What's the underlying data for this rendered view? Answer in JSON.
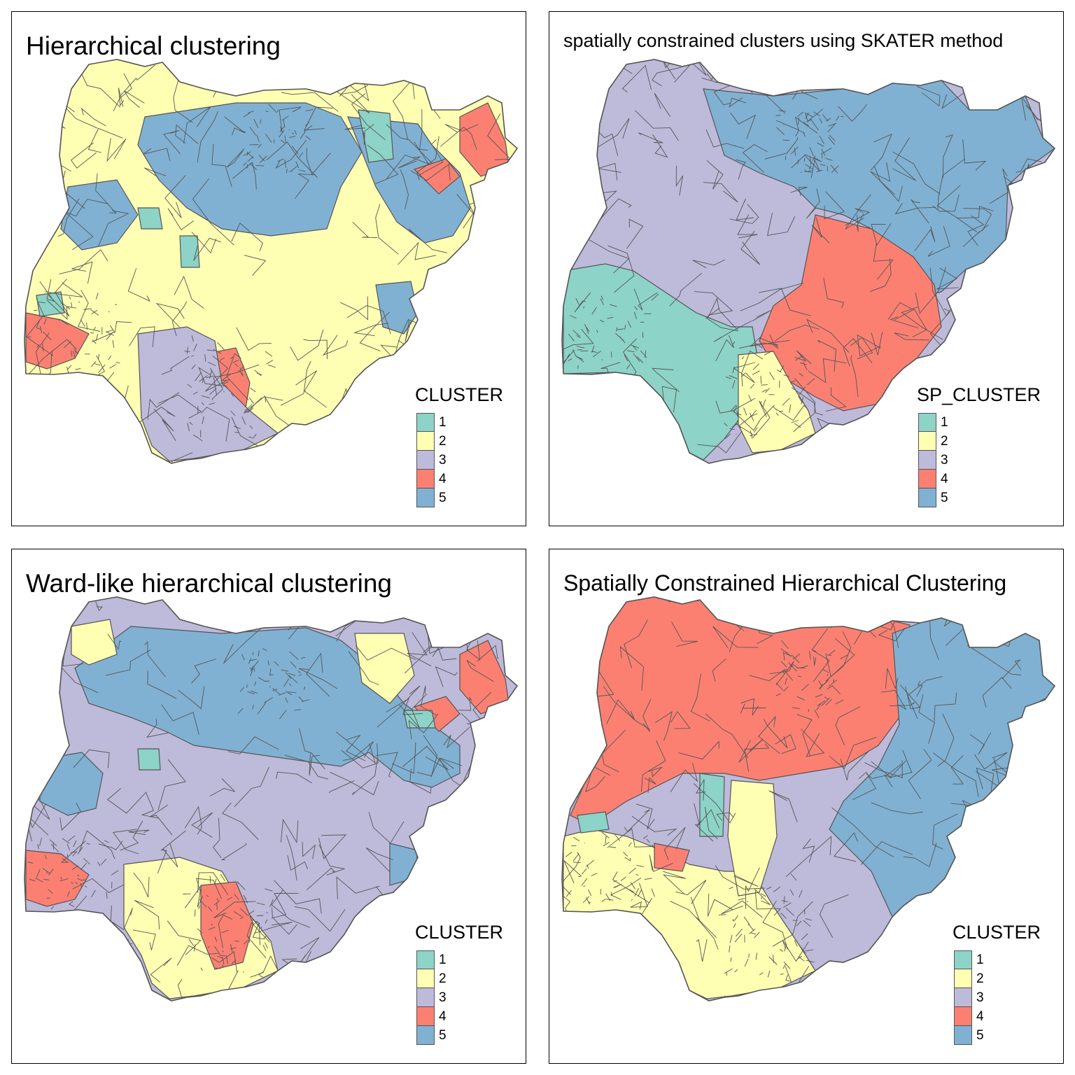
{
  "palette": {
    "1": "#8DD3C7",
    "2": "#FFFFB3",
    "3": "#BEBADA",
    "4": "#FB8072",
    "5": "#80B1D3"
  },
  "border_color": "#555555",
  "legend_labels": [
    "1",
    "2",
    "3",
    "4",
    "5"
  ],
  "panels": [
    {
      "title": "Hierarchical clustering",
      "legend_title": "CLUSTER"
    },
    {
      "title": "spatially constrained clusters using SKATER method",
      "legend_title": "SP_CLUSTER"
    },
    {
      "title": "Ward-like hierarchical clustering",
      "legend_title": "CLUSTER"
    },
    {
      "title": "Spatially Constrained Hierarchical Clustering",
      "legend_title": "CLUSTER"
    }
  ],
  "map_layers": [
    {
      "base": "2",
      "regions": [
        {
          "cluster": "5",
          "area": "northeast"
        },
        {
          "cluster": "5",
          "area": "north-central"
        },
        {
          "cluster": "4",
          "area": "far northeast"
        },
        {
          "cluster": "4",
          "area": "southwest"
        },
        {
          "cluster": "4",
          "area": "south-central"
        },
        {
          "cluster": "3",
          "area": "south"
        },
        {
          "cluster": "1",
          "area": "scattered"
        }
      ]
    },
    {
      "base": "3",
      "regions": [
        {
          "cluster": "5",
          "area": "north and east"
        },
        {
          "cluster": "4",
          "area": "east-central"
        },
        {
          "cluster": "1",
          "area": "southwest"
        },
        {
          "cluster": "2",
          "area": "southeast"
        }
      ]
    },
    {
      "base": "3",
      "regions": [
        {
          "cluster": "5",
          "area": "north"
        },
        {
          "cluster": "2",
          "area": "south"
        },
        {
          "cluster": "4",
          "area": "far northeast"
        },
        {
          "cluster": "4",
          "area": "southwest"
        },
        {
          "cluster": "4",
          "area": "south-central"
        },
        {
          "cluster": "1",
          "area": "scattered"
        }
      ]
    },
    {
      "base": "3",
      "regions": [
        {
          "cluster": "4",
          "area": "north and northwest"
        },
        {
          "cluster": "5",
          "area": "east"
        },
        {
          "cluster": "2",
          "area": "south"
        },
        {
          "cluster": "1",
          "area": "scattered"
        }
      ]
    }
  ]
}
